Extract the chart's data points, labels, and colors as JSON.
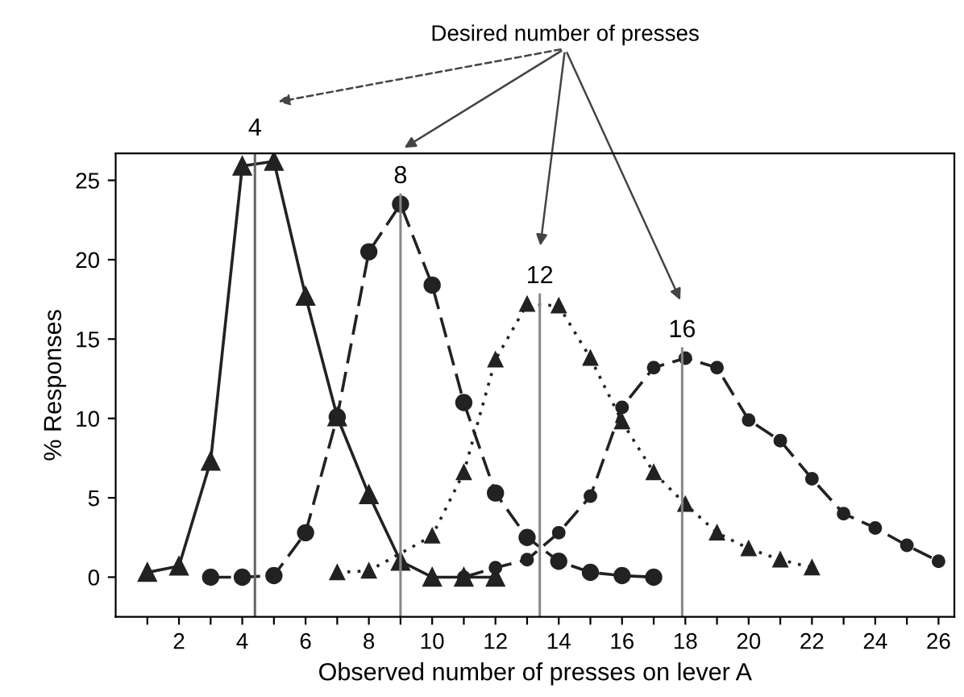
{
  "chart_data": {
    "type": "line",
    "xlabel": "Observed number of presses on lever A",
    "ylabel": "% Responses",
    "xlim": [
      0,
      26.5
    ],
    "ylim": [
      -2.5,
      26.7
    ],
    "xticks": [
      {
        "value": 1,
        "label": null
      },
      2,
      {
        "value": 3,
        "label": null
      },
      4,
      {
        "value": 5,
        "label": null
      },
      6,
      {
        "value": 7,
        "label": null
      },
      8,
      {
        "value": 9,
        "label": null
      },
      10,
      {
        "value": 11,
        "label": null
      },
      12,
      {
        "value": 13,
        "label": null
      },
      14,
      {
        "value": 15,
        "label": null
      },
      16,
      {
        "value": 17,
        "label": null
      },
      18,
      {
        "value": 19,
        "label": null
      },
      20,
      {
        "value": 21,
        "label": null
      },
      22,
      {
        "value": 23,
        "label": null
      },
      24,
      {
        "value": 25,
        "label": null
      },
      26
    ],
    "yticks": [
      0,
      5,
      10,
      15,
      20,
      25
    ],
    "grid": false,
    "series": [
      {
        "color": "#222222",
        "marker": "triangle",
        "line_style": "solid",
        "x": [
          1,
          2,
          3,
          4,
          5,
          6,
          7,
          8,
          9,
          10,
          11,
          12
        ],
        "values": [
          0.3,
          0.7,
          7.3,
          25.9,
          26.2,
          17.7,
          10.1,
          5.2,
          1.0,
          0,
          0,
          0
        ]
      },
      {
        "color": "#222222",
        "marker": "circle",
        "line_style": "dashed",
        "x": [
          3,
          4,
          5,
          6,
          7,
          8,
          9,
          10,
          11,
          12,
          13,
          14,
          15,
          16,
          17
        ],
        "values": [
          0,
          0,
          0.1,
          2.8,
          10.1,
          20.5,
          23.5,
          18.4,
          11.0,
          5.3,
          2.5,
          1.0,
          0.3,
          0.1,
          0
        ]
      },
      {
        "color": "#222222",
        "marker": "triangle",
        "line_style": "dotted",
        "x": [
          7,
          8,
          10,
          11,
          12,
          13,
          14,
          15,
          16,
          17,
          18,
          19,
          20,
          21,
          22
        ],
        "values": [
          0.3,
          0.4,
          2.6,
          6.6,
          13.7,
          17.2,
          17.1,
          13.8,
          9.8,
          6.6,
          4.6,
          2.8,
          1.8,
          1.1,
          0.6
        ]
      },
      {
        "color": "#222222",
        "marker": "circle",
        "line_style": "dashed",
        "x": [
          11,
          12,
          13,
          14,
          15,
          16,
          17,
          18,
          19,
          20,
          21,
          22,
          23,
          24,
          25,
          26
        ],
        "values": [
          0,
          0.6,
          1.1,
          2.8,
          5.1,
          10.7,
          13.2,
          13.8,
          13.2,
          9.9,
          8.6,
          6.2,
          4.0,
          3.1,
          2.0,
          1.0
        ]
      }
    ],
    "ref_lines": [
      {
        "axis": "x",
        "value": 4.4,
        "color": "#666666"
      },
      {
        "axis": "x",
        "value": 9,
        "color": "#888888"
      },
      {
        "axis": "x",
        "value": 13.4,
        "color": "#888888"
      },
      {
        "axis": "x",
        "value": 17.9,
        "color": "#888888"
      }
    ],
    "annotations": [
      "Desired number of presses",
      {
        "text": "4",
        "x": 4.4,
        "y": 27.5
      },
      {
        "text": "8",
        "x": 9,
        "y": 24.5
      },
      {
        "text": "12",
        "x": 13.4,
        "y": 18.2
      },
      {
        "text": "16",
        "x": 17.9,
        "y": 14.8
      }
    ]
  }
}
